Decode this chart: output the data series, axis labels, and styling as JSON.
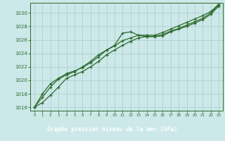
{
  "title": "Graphe pression niveau de la mer (hPa)",
  "x": [
    0,
    1,
    2,
    3,
    4,
    5,
    6,
    7,
    8,
    9,
    10,
    11,
    12,
    13,
    14,
    15,
    16,
    17,
    18,
    19,
    20,
    21,
    22,
    23
  ],
  "line1": [
    1016.0,
    1016.7,
    1017.8,
    1019.0,
    1020.3,
    1020.8,
    1021.3,
    1022.0,
    1022.8,
    1023.8,
    1024.5,
    1025.2,
    1025.8,
    1026.3,
    1026.5,
    1026.5,
    1026.6,
    1027.2,
    1027.6,
    1028.0,
    1028.5,
    1029.0,
    1029.8,
    1031.0
  ],
  "line2": [
    1016.0,
    1017.5,
    1019.0,
    1020.2,
    1020.8,
    1021.3,
    1022.0,
    1022.8,
    1023.8,
    1024.5,
    1025.2,
    1027.0,
    1027.2,
    1026.7,
    1026.5,
    1026.5,
    1026.8,
    1027.3,
    1027.7,
    1028.2,
    1028.7,
    1029.2,
    1030.0,
    1031.2
  ],
  "line3": [
    1016.0,
    1018.0,
    1019.5,
    1020.3,
    1021.0,
    1021.4,
    1021.9,
    1022.6,
    1023.5,
    1024.5,
    1025.1,
    1025.9,
    1026.3,
    1026.7,
    1026.7,
    1026.7,
    1027.1,
    1027.6,
    1028.1,
    1028.6,
    1029.1,
    1029.6,
    1030.2,
    1031.3
  ],
  "ylim": [
    1015.5,
    1031.5
  ],
  "yticks": [
    1016,
    1018,
    1020,
    1022,
    1024,
    1026,
    1028,
    1030
  ],
  "xticks": [
    0,
    1,
    2,
    3,
    4,
    5,
    6,
    7,
    8,
    9,
    10,
    11,
    12,
    13,
    14,
    15,
    16,
    17,
    18,
    19,
    20,
    21,
    22,
    23
  ],
  "line_color": "#2d6a2d",
  "bg_color": "#cce8e8",
  "grid_color": "#aacccc",
  "title_bg": "#336633",
  "title_fg": "#ffffff",
  "figsize": [
    3.2,
    2.0
  ],
  "dpi": 100
}
